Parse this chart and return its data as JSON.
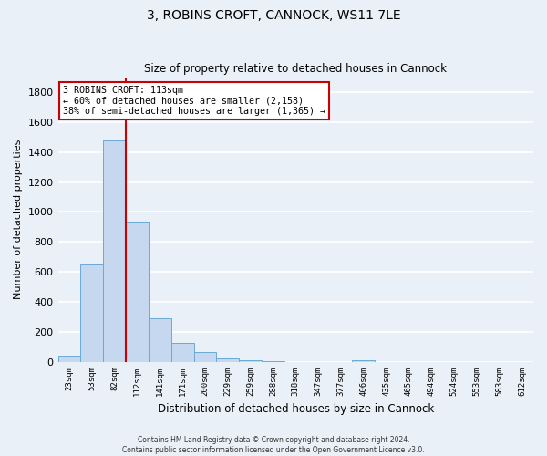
{
  "title": "3, ROBINS CROFT, CANNOCK, WS11 7LE",
  "subtitle": "Size of property relative to detached houses in Cannock",
  "xlabel": "Distribution of detached houses by size in Cannock",
  "ylabel": "Number of detached properties",
  "categories": [
    "23sqm",
    "53sqm",
    "82sqm",
    "112sqm",
    "141sqm",
    "171sqm",
    "200sqm",
    "229sqm",
    "259sqm",
    "288sqm",
    "318sqm",
    "347sqm",
    "377sqm",
    "406sqm",
    "435sqm",
    "465sqm",
    "494sqm",
    "524sqm",
    "553sqm",
    "583sqm",
    "612sqm"
  ],
  "values": [
    38,
    650,
    1475,
    935,
    290,
    125,
    62,
    22,
    12,
    2,
    0,
    0,
    0,
    12,
    0,
    0,
    0,
    0,
    0,
    0,
    0
  ],
  "bar_color": "#c5d8f0",
  "bar_edge_color": "#6aaad4",
  "marker_label": "3 ROBINS CROFT: 113sqm",
  "annotation_line1": "← 60% of detached houses are smaller (2,158)",
  "annotation_line2": "38% of semi-detached houses are larger (1,365) →",
  "annotation_box_color": "#ffffff",
  "annotation_box_edge": "#cc0000",
  "vline_color": "#cc0000",
  "vline_x": 2.5,
  "ylim": [
    0,
    1900
  ],
  "yticks": [
    0,
    200,
    400,
    600,
    800,
    1000,
    1200,
    1400,
    1600,
    1800
  ],
  "background_color": "#eaf0f8",
  "grid_color": "#ffffff",
  "footer_line1": "Contains HM Land Registry data © Crown copyright and database right 2024.",
  "footer_line2": "Contains public sector information licensed under the Open Government Licence v3.0."
}
